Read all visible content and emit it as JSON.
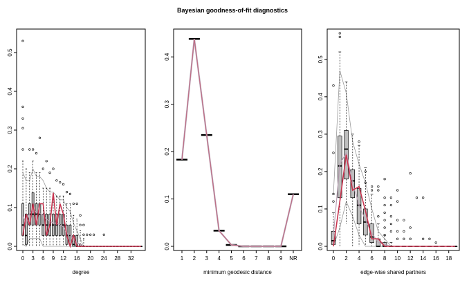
{
  "title": "Bayesian goodness-of-fit diagnostics",
  "colors": {
    "box_fill": "#bebebe",
    "observed": "#c8344f",
    "simulated_mean": "#b9a1b4",
    "whisker": "#000000"
  },
  "chart_data": [
    {
      "type": "box",
      "xlabel": "degree",
      "ylabel": "",
      "ylim": [
        0,
        0.55
      ],
      "yticks": [
        0,
        0.1,
        0.2,
        0.3,
        0.4,
        0.5
      ],
      "yticklabels": [
        "0.0",
        "0.1",
        "0.2",
        "0.3",
        "0.4",
        "0.5"
      ],
      "xlim": [
        0,
        35
      ],
      "xticks": [
        0,
        3,
        6,
        9,
        12,
        16,
        20,
        24,
        28,
        32
      ],
      "xticklabels": [
        "0",
        "3",
        "6",
        "9",
        "12",
        "16",
        "20",
        "24",
        "28",
        "32"
      ],
      "x": [
        0,
        1,
        2,
        3,
        4,
        5,
        6,
        7,
        8,
        9,
        10,
        11,
        12,
        13,
        14,
        15,
        16,
        17,
        18,
        19,
        20,
        21,
        22,
        23,
        24,
        25,
        26,
        27,
        28,
        29,
        30,
        31,
        32,
        33,
        34,
        35
      ],
      "q1": [
        0.028,
        0.005,
        0.055,
        0.055,
        0.055,
        0.055,
        0.028,
        0.028,
        0.028,
        0.028,
        0.028,
        0.028,
        0.028,
        0.005,
        0.005,
        0.0,
        0.0,
        0.0,
        0,
        0,
        0,
        0,
        0,
        0,
        0,
        0,
        0,
        0,
        0,
        0,
        0,
        0,
        0,
        0,
        0,
        0
      ],
      "median": [
        0.055,
        0.028,
        0.083,
        0.083,
        0.083,
        0.083,
        0.055,
        0.055,
        0.055,
        0.055,
        0.055,
        0.055,
        0.055,
        0.028,
        0.028,
        0.005,
        0.0,
        0.0,
        0,
        0,
        0,
        0,
        0,
        0,
        0,
        0,
        0,
        0,
        0,
        0,
        0,
        0,
        0,
        0,
        0,
        0
      ],
      "q3": [
        0.11,
        0.083,
        0.11,
        0.138,
        0.11,
        0.11,
        0.083,
        0.083,
        0.083,
        0.083,
        0.083,
        0.083,
        0.083,
        0.055,
        0.055,
        0.028,
        0.028,
        0.005,
        0,
        0,
        0,
        0,
        0,
        0,
        0,
        0,
        0,
        0,
        0,
        0,
        0,
        0,
        0,
        0,
        0,
        0
      ],
      "whisker_low": [
        0,
        0,
        0,
        0,
        0,
        0,
        0,
        0,
        0,
        0,
        0,
        0,
        0,
        0,
        0,
        0,
        0,
        0,
        0,
        0,
        0,
        0,
        0,
        0,
        0,
        0,
        0,
        0,
        0,
        0,
        0,
        0,
        0,
        0,
        0,
        0
      ],
      "whisker_high": [
        0.22,
        0.2,
        0.19,
        0.22,
        0.19,
        0.19,
        0.15,
        0.15,
        0.15,
        0.13,
        0.13,
        0.13,
        0.13,
        0.11,
        0.11,
        0.08,
        0.07,
        0.04,
        0.02,
        0.0,
        0,
        0,
        0,
        0,
        0,
        0,
        0,
        0,
        0,
        0,
        0,
        0,
        0,
        0,
        0,
        0
      ],
      "outliers": [
        {
          "x": 0,
          "y": 0.53
        },
        {
          "x": 0,
          "y": 0.36
        },
        {
          "x": 0,
          "y": 0.33
        },
        {
          "x": 0,
          "y": 0.305
        },
        {
          "x": 0,
          "y": 0.25
        },
        {
          "x": 2,
          "y": 0.25
        },
        {
          "x": 3,
          "y": 0.25
        },
        {
          "x": 4,
          "y": 0.24
        },
        {
          "x": 5,
          "y": 0.28
        },
        {
          "x": 6,
          "y": 0.2
        },
        {
          "x": 7,
          "y": 0.22
        },
        {
          "x": 8,
          "y": 0.19
        },
        {
          "x": 9,
          "y": 0.2
        },
        {
          "x": 10,
          "y": 0.17
        },
        {
          "x": 11,
          "y": 0.165
        },
        {
          "x": 12,
          "y": 0.16
        },
        {
          "x": 13,
          "y": 0.14
        },
        {
          "x": 14,
          "y": 0.135
        },
        {
          "x": 15,
          "y": 0.11
        },
        {
          "x": 16,
          "y": 0.11
        },
        {
          "x": 17,
          "y": 0.08
        },
        {
          "x": 17,
          "y": 0.055
        },
        {
          "x": 18,
          "y": 0.055
        },
        {
          "x": 18,
          "y": 0.03
        },
        {
          "x": 19,
          "y": 0.03
        },
        {
          "x": 20,
          "y": 0.03
        },
        {
          "x": 21,
          "y": 0.03
        },
        {
          "x": 24,
          "y": 0.03
        }
      ],
      "observed": [
        0.028,
        0.083,
        0.055,
        0.11,
        0.055,
        0.11,
        0.11,
        0.028,
        0.055,
        0.138,
        0.055,
        0.11,
        0.083,
        0.028,
        0.0,
        0.028,
        0.0,
        0,
        0,
        0,
        0,
        0,
        0,
        0,
        0,
        0,
        0,
        0,
        0,
        0,
        0,
        0,
        0,
        0,
        0,
        0
      ],
      "simulated_mean": [
        0.08,
        0.06,
        0.085,
        0.09,
        0.09,
        0.085,
        0.08,
        0.07,
        0.065,
        0.06,
        0.06,
        0.055,
        0.05,
        0.035,
        0.03,
        0.02,
        0.01,
        0.005,
        0,
        0,
        0,
        0,
        0,
        0,
        0,
        0,
        0,
        0,
        0,
        0,
        0,
        0,
        0,
        0,
        0,
        0
      ],
      "lower_band": [
        0.005,
        0.0,
        0.02,
        0.02,
        0.02,
        0.02,
        0.0,
        0.0,
        0.0,
        0.0,
        0.0,
        0.0,
        0.0,
        0.0,
        0.0,
        0,
        0,
        0,
        0,
        0,
        0,
        0,
        0,
        0,
        0,
        0,
        0,
        0,
        0,
        0,
        0,
        0,
        0,
        0,
        0,
        0
      ],
      "upper_band": [
        0.19,
        0.17,
        0.17,
        0.2,
        0.18,
        0.18,
        0.17,
        0.15,
        0.14,
        0.14,
        0.13,
        0.12,
        0.12,
        0.1,
        0.09,
        0.06,
        0.04,
        0.02,
        0,
        0,
        0,
        0,
        0,
        0,
        0,
        0,
        0,
        0,
        0,
        0,
        0,
        0,
        0,
        0,
        0,
        0
      ]
    },
    {
      "type": "box",
      "xlabel": "minimum geodesic distance",
      "ylabel": "",
      "ylim": [
        0,
        0.45
      ],
      "yticks": [
        0,
        0.1,
        0.2,
        0.3,
        0.4
      ],
      "yticklabels": [
        "0.0",
        "0.1",
        "0.2",
        "0.3",
        "0.4"
      ],
      "categories": [
        "1",
        "2",
        "3",
        "4",
        "5",
        "6",
        "7",
        "8",
        "9",
        "NR"
      ],
      "median": [
        0.183,
        0.438,
        0.235,
        0.033,
        0.003,
        0.0,
        0.0,
        0.0,
        0.0,
        0.11
      ],
      "observed": [
        0.183,
        0.438,
        0.235,
        0.033,
        0.003,
        0.0,
        0.0,
        0.0,
        0.0,
        0.11
      ],
      "simulated_mean": [
        0.183,
        0.438,
        0.235,
        0.033,
        0.003,
        0.0,
        0.0,
        0.0,
        0.0,
        0.11
      ]
    },
    {
      "type": "box",
      "xlabel": "edge-wise shared partners",
      "ylabel": "",
      "ylim": [
        0,
        0.57
      ],
      "yticks": [
        0,
        0.1,
        0.2,
        0.3,
        0.4,
        0.5
      ],
      "yticklabels": [
        "0.0",
        "0.1",
        "0.2",
        "0.3",
        "0.4",
        "0.5"
      ],
      "xlim": [
        0,
        19
      ],
      "xticks": [
        0,
        2,
        4,
        6,
        8,
        10,
        12,
        14,
        16,
        18
      ],
      "xticklabels": [
        "0",
        "2",
        "4",
        "6",
        "8",
        "10",
        "12",
        "14",
        "16",
        "18"
      ],
      "x": [
        0,
        1,
        2,
        3,
        4,
        5,
        6,
        7,
        8,
        9,
        10,
        11,
        12,
        13,
        14,
        15,
        16,
        17,
        18,
        19
      ],
      "q1": [
        0.005,
        0.13,
        0.18,
        0.13,
        0.06,
        0.03,
        0.01,
        0.0,
        0,
        0,
        0,
        0,
        0,
        0,
        0,
        0,
        0,
        0,
        0,
        0
      ],
      "median": [
        0.015,
        0.215,
        0.26,
        0.175,
        0.11,
        0.065,
        0.025,
        0.0,
        0,
        0,
        0,
        0,
        0,
        0,
        0,
        0,
        0,
        0,
        0,
        0
      ],
      "q3": [
        0.04,
        0.295,
        0.31,
        0.205,
        0.155,
        0.1,
        0.06,
        0.02,
        0.01,
        0.0,
        0,
        0,
        0,
        0,
        0,
        0,
        0,
        0,
        0,
        0
      ],
      "whisker_low": [
        0,
        0.0,
        0.06,
        0.0,
        0.0,
        0.0,
        0.0,
        0,
        0,
        0,
        0,
        0,
        0,
        0,
        0,
        0,
        0,
        0,
        0,
        0
      ],
      "whisker_high": [
        0.09,
        0.52,
        0.44,
        0.3,
        0.27,
        0.21,
        0.14,
        0.06,
        0.03,
        0.01,
        0,
        0,
        0,
        0,
        0,
        0,
        0,
        0,
        0,
        0
      ],
      "outliers": [
        {
          "x": 0,
          "y": 0.43
        },
        {
          "x": 0,
          "y": 0.25
        },
        {
          "x": 0,
          "y": 0.14
        },
        {
          "x": 0,
          "y": 0.12
        },
        {
          "x": 1,
          "y": 0.57
        },
        {
          "x": 1,
          "y": 0.56
        },
        {
          "x": 4,
          "y": 0.28
        },
        {
          "x": 5,
          "y": 0.2
        },
        {
          "x": 5,
          "y": 0.17
        },
        {
          "x": 6,
          "y": 0.16
        },
        {
          "x": 6,
          "y": 0.15
        },
        {
          "x": 7,
          "y": 0.16
        },
        {
          "x": 7,
          "y": 0.15
        },
        {
          "x": 7,
          "y": 0.08
        },
        {
          "x": 8,
          "y": 0.18
        },
        {
          "x": 8,
          "y": 0.13
        },
        {
          "x": 8,
          "y": 0.11
        },
        {
          "x": 8,
          "y": 0.09
        },
        {
          "x": 8,
          "y": 0.07
        },
        {
          "x": 8,
          "y": 0.05
        },
        {
          "x": 8,
          "y": 0.03
        },
        {
          "x": 9,
          "y": 0.13
        },
        {
          "x": 9,
          "y": 0.11
        },
        {
          "x": 9,
          "y": 0.08
        },
        {
          "x": 9,
          "y": 0.06
        },
        {
          "x": 9,
          "y": 0.04
        },
        {
          "x": 10,
          "y": 0.15
        },
        {
          "x": 10,
          "y": 0.12
        },
        {
          "x": 10,
          "y": 0.07
        },
        {
          "x": 10,
          "y": 0.04
        },
        {
          "x": 10,
          "y": 0.02
        },
        {
          "x": 11,
          "y": 0.07
        },
        {
          "x": 11,
          "y": 0.04
        },
        {
          "x": 11,
          "y": 0.02
        },
        {
          "x": 12,
          "y": 0.195
        },
        {
          "x": 12,
          "y": 0.05
        },
        {
          "x": 12,
          "y": 0.02
        },
        {
          "x": 13,
          "y": 0.13
        },
        {
          "x": 14,
          "y": 0.13
        },
        {
          "x": 14,
          "y": 0.02
        },
        {
          "x": 15,
          "y": 0.02
        },
        {
          "x": 16,
          "y": 0.01
        }
      ],
      "observed": [
        0.0,
        0.12,
        0.245,
        0.15,
        0.16,
        0.095,
        0.02,
        0.02,
        0.0,
        0,
        0,
        0,
        0,
        0,
        0,
        0,
        0,
        0,
        0,
        0
      ],
      "simulated_mean": [
        0.03,
        0.22,
        0.25,
        0.17,
        0.11,
        0.07,
        0.035,
        0.01,
        0.005,
        0,
        0,
        0,
        0,
        0,
        0,
        0,
        0,
        0,
        0,
        0
      ],
      "lower_band": [
        0.0,
        0.05,
        0.12,
        0.08,
        0.03,
        0.0,
        0.0,
        0,
        0,
        0,
        0,
        0,
        0,
        0,
        0,
        0,
        0,
        0,
        0,
        0
      ],
      "upper_band": [
        0.14,
        0.47,
        0.41,
        0.28,
        0.22,
        0.17,
        0.1,
        0.04,
        0.02,
        0,
        0,
        0,
        0,
        0,
        0,
        0,
        0,
        0,
        0,
        0
      ]
    }
  ]
}
